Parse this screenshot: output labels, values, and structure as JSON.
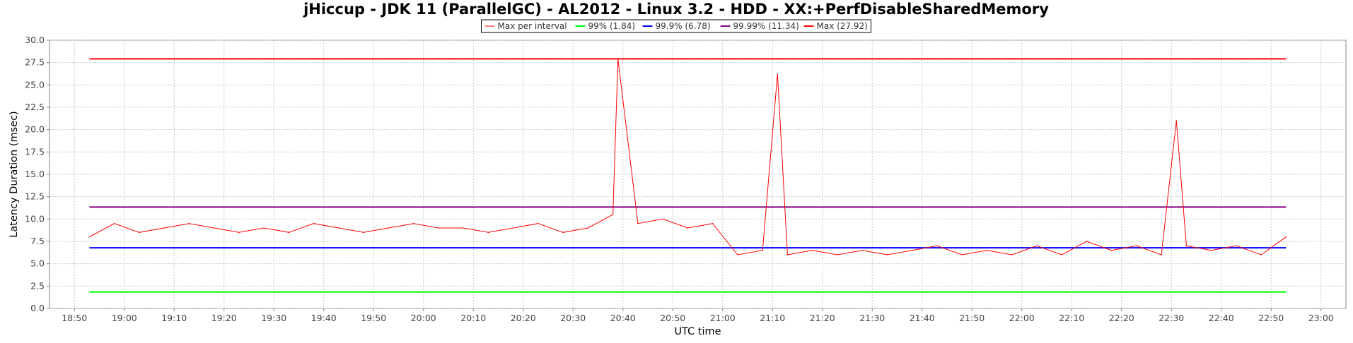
{
  "chart_data": {
    "type": "line",
    "title": "jHiccup - JDK 11 (ParallelGC) - AL2012 - Linux 3.2 - HDD - XX:+PerfDisableSharedMemory",
    "xlabel": "UTC time",
    "ylabel": "Latency Duration (msec)",
    "xlim": [
      "18:45",
      "23:05"
    ],
    "ylim": [
      0,
      30
    ],
    "x_ticks": [
      "18:50",
      "19:00",
      "19:10",
      "19:20",
      "19:30",
      "19:40",
      "19:50",
      "20:00",
      "20:10",
      "20:20",
      "20:30",
      "20:40",
      "20:50",
      "21:00",
      "21:10",
      "21:20",
      "21:30",
      "21:40",
      "21:50",
      "22:00",
      "22:10",
      "22:20",
      "22:30",
      "22:40",
      "22:50",
      "23:00"
    ],
    "y_ticks": [
      "0.0",
      "2.5",
      "5.0",
      "7.5",
      "10.0",
      "12.5",
      "15.0",
      "17.5",
      "20.0",
      "22.5",
      "25.0",
      "27.5",
      "30.0"
    ],
    "grid": true,
    "legend_position": "top-center",
    "series": [
      {
        "name": "Max per interval",
        "color": "#ff0000",
        "x": [
          "18:53",
          "18:58",
          "19:03",
          "19:08",
          "19:13",
          "19:18",
          "19:23",
          "19:28",
          "19:33",
          "19:38",
          "19:43",
          "19:48",
          "19:53",
          "19:58",
          "20:03",
          "20:08",
          "20:13",
          "20:18",
          "20:23",
          "20:28",
          "20:33",
          "20:38",
          "20:39",
          "20:43",
          "20:48",
          "20:53",
          "20:58",
          "21:03",
          "21:08",
          "21:11",
          "21:13",
          "21:18",
          "21:23",
          "21:28",
          "21:33",
          "21:38",
          "21:43",
          "21:48",
          "21:53",
          "21:58",
          "22:03",
          "22:08",
          "22:13",
          "22:18",
          "22:23",
          "22:28",
          "22:31",
          "22:33",
          "22:38",
          "22:43",
          "22:48",
          "22:53"
        ],
        "values": [
          8.0,
          9.5,
          8.5,
          9.0,
          9.5,
          9.0,
          8.5,
          9.0,
          8.5,
          9.5,
          9.0,
          8.5,
          9.0,
          9.5,
          9.0,
          9.0,
          8.5,
          9.0,
          9.5,
          8.5,
          9.0,
          10.5,
          27.9,
          9.5,
          10.0,
          9.0,
          9.5,
          6.0,
          6.5,
          26.2,
          6.0,
          6.5,
          6.0,
          6.5,
          6.0,
          6.5,
          7.0,
          6.0,
          6.5,
          6.0,
          7.0,
          6.0,
          7.5,
          6.5,
          7.0,
          6.0,
          21.0,
          7.0,
          6.5,
          7.0,
          6.0,
          8.0
        ]
      },
      {
        "name": "99% (1.84)",
        "color": "#00ff00",
        "value": 1.84
      },
      {
        "name": "99.9% (6.78)",
        "color": "#0000ff",
        "value": 6.78
      },
      {
        "name": "99.99% (11.34)",
        "color": "#800080",
        "value": 11.34
      },
      {
        "name": "Max (27.92)",
        "color": "#ff0000",
        "value": 27.92
      }
    ],
    "percentile_range": [
      "18:53",
      "22:53"
    ]
  }
}
